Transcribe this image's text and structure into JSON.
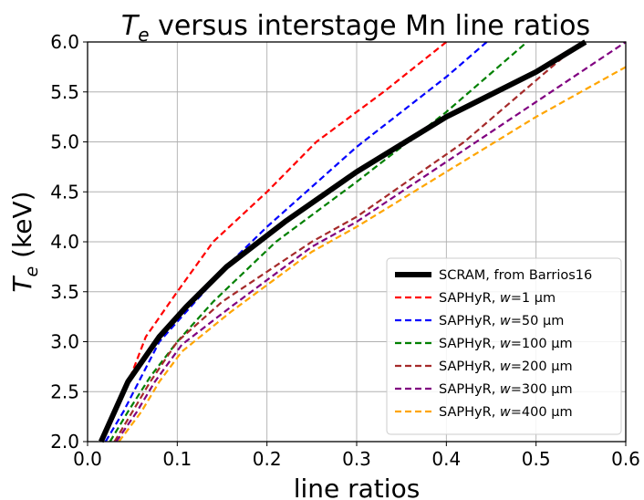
{
  "chart_data": {
    "type": "line",
    "title_prefix": "T",
    "title_sub": "e",
    "title_suffix": " versus interstage Mn line ratios",
    "xlabel": "line ratios",
    "ylabel_prefix": "T",
    "ylabel_sub": "e",
    "ylabel_suffix": " (keV)",
    "xlim": [
      0.0,
      0.6
    ],
    "ylim": [
      2.0,
      6.0
    ],
    "xticks": [
      "0.0",
      "0.1",
      "0.2",
      "0.3",
      "0.4",
      "0.5",
      "0.6"
    ],
    "yticks": [
      "2.0",
      "2.5",
      "3.0",
      "3.5",
      "4.0",
      "4.5",
      "5.0",
      "5.5",
      "6.0"
    ],
    "grid": true,
    "legend_position": "lower right",
    "series": [
      {
        "name": "SCRAM, from Barrios16",
        "color": "#000000",
        "style": "solid",
        "x": [
          0.015,
          0.02,
          0.045,
          0.08,
          0.11,
          0.155,
          0.22,
          0.3,
          0.4,
          0.5,
          0.555
        ],
        "y": [
          2.0,
          2.1,
          2.6,
          3.05,
          3.35,
          3.75,
          4.2,
          4.7,
          5.25,
          5.7,
          6.0
        ]
      },
      {
        "name": "SAPHyR, w=1 μm",
        "prefix": "SAPHyR, ",
        "var": "w",
        "suffix": "=1 μm",
        "color": "#ff0000",
        "style": "dashed",
        "x": [
          0.015,
          0.025,
          0.05,
          0.065,
          0.1,
          0.14,
          0.2,
          0.255,
          0.33,
          0.4
        ],
        "y": [
          2.0,
          2.2,
          2.7,
          3.05,
          3.5,
          4.0,
          4.5,
          5.0,
          5.5,
          6.0
        ]
      },
      {
        "name": "SAPHyR, w=50 μm",
        "prefix": "SAPHyR, ",
        "var": "w",
        "suffix": "=50 μm",
        "color": "#0000ff",
        "style": "dashed",
        "x": [
          0.02,
          0.04,
          0.06,
          0.08,
          0.11,
          0.16,
          0.2,
          0.3,
          0.4,
          0.445
        ],
        "y": [
          2.0,
          2.3,
          2.65,
          3.0,
          3.3,
          3.8,
          4.15,
          4.95,
          5.65,
          6.0
        ]
      },
      {
        "name": "SAPHyR, w=100 μm",
        "prefix": "SAPHyR, ",
        "var": "w",
        "suffix": "=100 μm",
        "color": "#008000",
        "style": "dashed",
        "x": [
          0.025,
          0.045,
          0.07,
          0.1,
          0.14,
          0.21,
          0.3,
          0.4,
          0.49
        ],
        "y": [
          2.0,
          2.3,
          2.65,
          3.0,
          3.4,
          4.0,
          4.6,
          5.3,
          6.0
        ]
      },
      {
        "name": "SAPHyR, w=200 μm",
        "prefix": "SAPHyR, ",
        "var": "w",
        "suffix": "=200 μm",
        "color": "#a52a2a",
        "style": "dashed",
        "x": [
          0.03,
          0.05,
          0.07,
          0.1,
          0.15,
          0.25,
          0.3,
          0.42,
          0.55
        ],
        "y": [
          2.0,
          2.3,
          2.6,
          3.0,
          3.4,
          4.0,
          4.25,
          5.0,
          6.0
        ]
      },
      {
        "name": "SAPHyR, w=300 μm",
        "prefix": "SAPHyR, ",
        "var": "w",
        "suffix": "=300 μm",
        "color": "#800080",
        "style": "dashed",
        "x": [
          0.032,
          0.055,
          0.075,
          0.105,
          0.16,
          0.25,
          0.3,
          0.4,
          0.5,
          0.6
        ],
        "y": [
          2.0,
          2.3,
          2.6,
          2.97,
          3.35,
          3.95,
          4.2,
          4.8,
          5.4,
          6.0
        ]
      },
      {
        "name": "SAPHyR, w=400 μm",
        "prefix": "SAPHyR, ",
        "var": "w",
        "suffix": "=400 μm",
        "color": "#ffa500",
        "style": "dashed",
        "x": [
          0.035,
          0.06,
          0.08,
          0.105,
          0.16,
          0.25,
          0.3,
          0.4,
          0.5,
          0.6
        ],
        "y": [
          2.0,
          2.3,
          2.6,
          2.9,
          3.3,
          3.9,
          4.15,
          4.7,
          5.25,
          5.75
        ]
      }
    ]
  }
}
